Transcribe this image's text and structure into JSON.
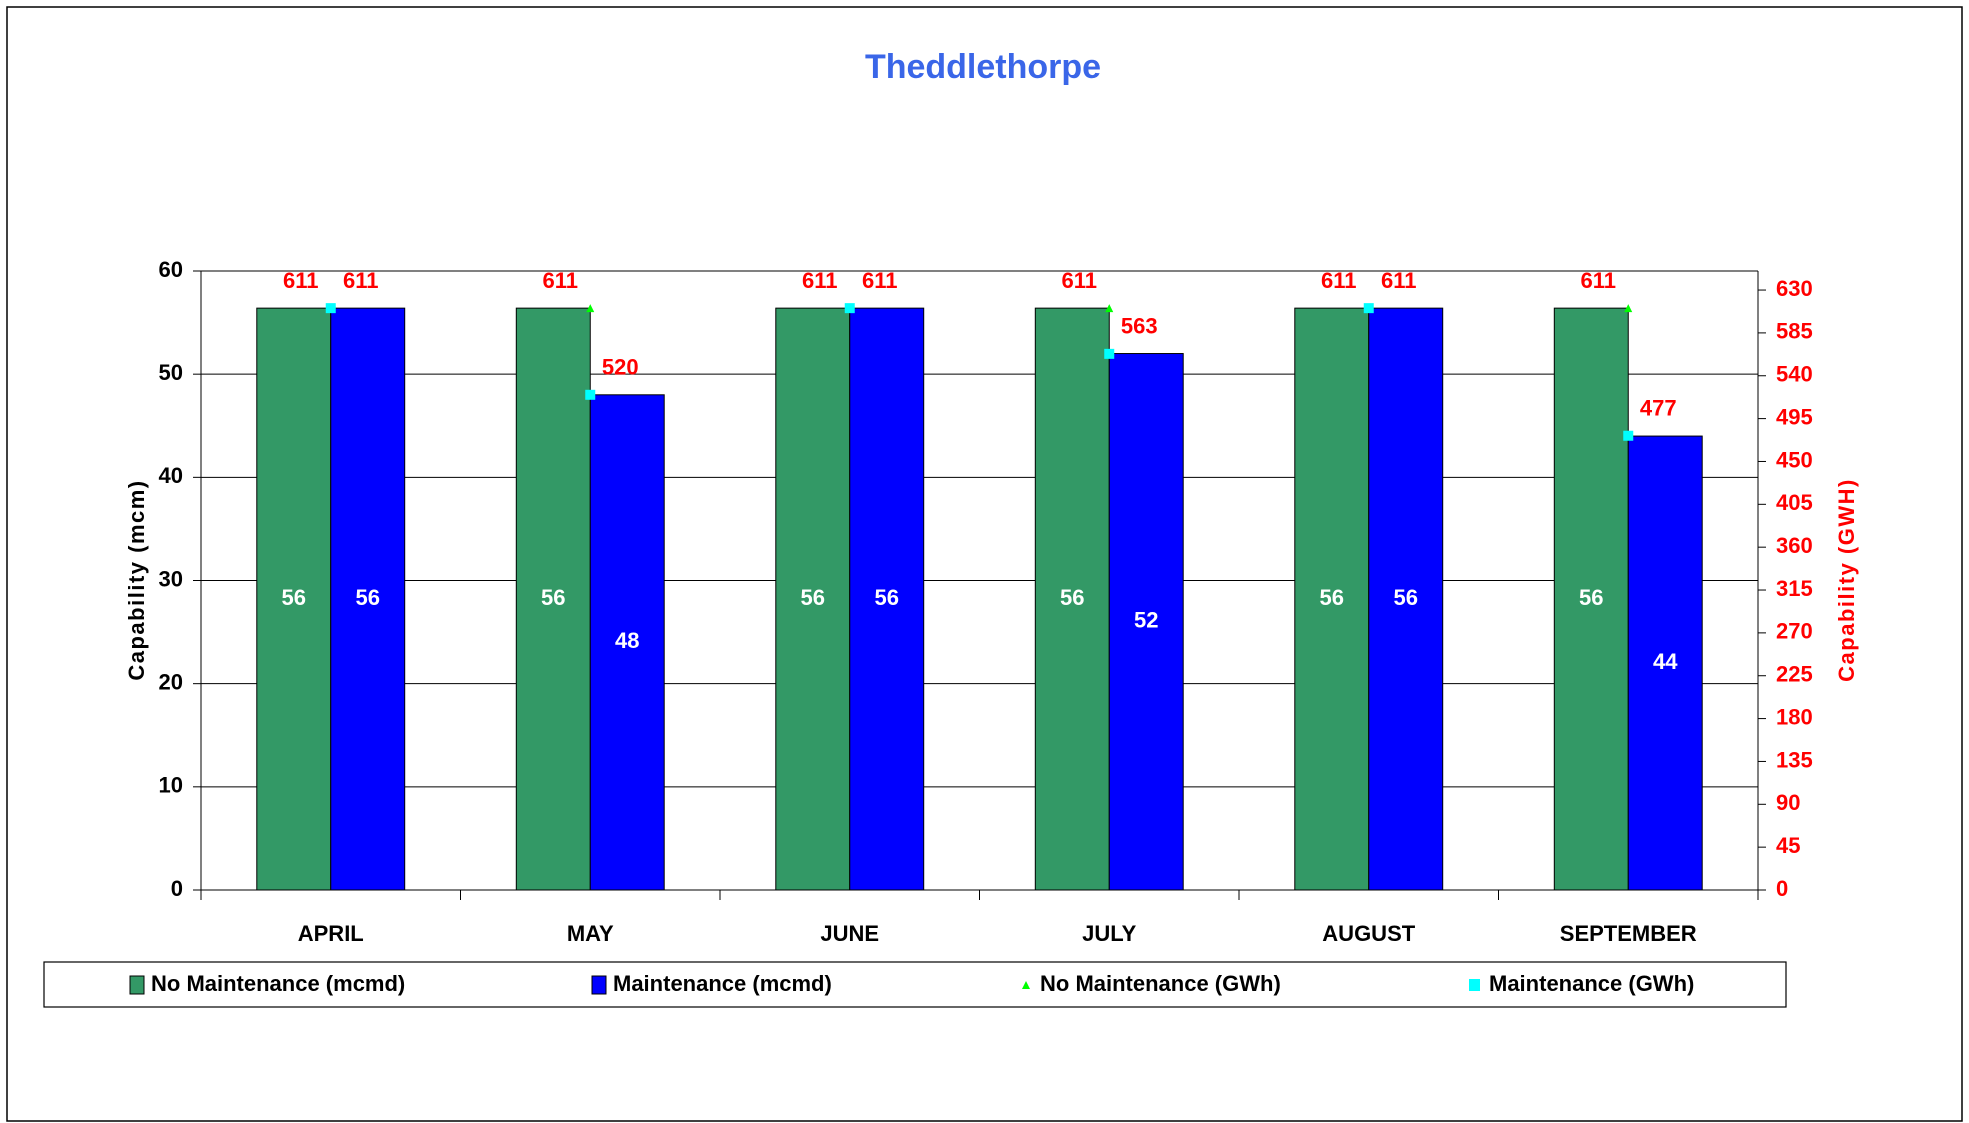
{
  "chart_data": {
    "type": "bar",
    "title": "Theddlethorpe",
    "categories": [
      "APRIL",
      "MAY",
      "JUNE",
      "JULY",
      "AUGUST",
      "SEPTEMBER"
    ],
    "ylabel": "Capability (mcm)",
    "y2label": "Capability (GWH)",
    "ylim": [
      0,
      60
    ],
    "yticks": [
      0,
      10,
      20,
      30,
      40,
      50,
      60
    ],
    "y2lim": [
      0,
      650
    ],
    "y2ticks": [
      0,
      45,
      90,
      135,
      180,
      225,
      270,
      315,
      360,
      405,
      450,
      495,
      540,
      585,
      630
    ],
    "grid": true,
    "legend": "bottom",
    "series": [
      {
        "name": "No Maintenance (mcmd)",
        "color": "#339966",
        "mark": "bar",
        "label_color": "#ffffff",
        "values": [
          56.4,
          56.4,
          56.4,
          56.4,
          56.4,
          56.4
        ],
        "value_labels": [
          "56",
          "56",
          "56",
          "56",
          "56",
          "56"
        ]
      },
      {
        "name": "Maintenance (mcmd)",
        "color": "#0000ff",
        "mark": "bar",
        "label_color": "#ffffff",
        "values": [
          56.4,
          48,
          56.4,
          52,
          56.4,
          44
        ],
        "value_labels": [
          "56",
          "48",
          "56",
          "52",
          "56",
          "44"
        ]
      },
      {
        "name": "No Maintenance (GWh)",
        "color": "#00ff00",
        "mark": "triangle",
        "axis": "y2",
        "label_color": "#ff0000",
        "values": [
          611,
          611,
          611,
          611,
          611,
          611
        ]
      },
      {
        "name": "Maintenance (GWh)",
        "color": "#00ffff",
        "mark": "square",
        "axis": "y2",
        "label_color": "#ff0000",
        "values": [
          611,
          520,
          611,
          563,
          611,
          477
        ]
      }
    ]
  }
}
